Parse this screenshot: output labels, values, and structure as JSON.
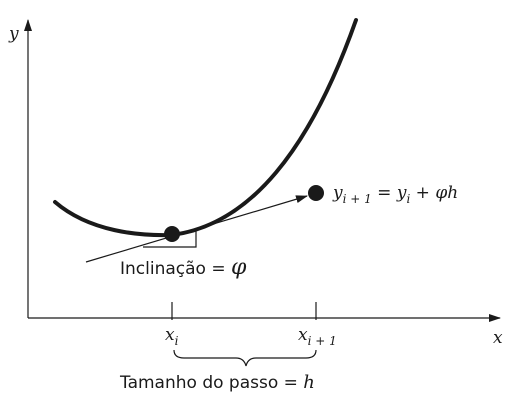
{
  "axes": {
    "y_label": "y",
    "x_label": "x"
  },
  "ticks": {
    "xi_base": "x",
    "xi_sub": "i",
    "xi1_base": "x",
    "xi1_sub": "i + 1"
  },
  "annotations": {
    "slope_text": "Inclinação = ",
    "slope_symbol": "φ",
    "step_text": "Tamanho do passo = ",
    "step_symbol": "h",
    "formula": {
      "lhs_base": "y",
      "lhs_sub": "i + 1",
      "equals": " = ",
      "rhs_base": "y",
      "rhs_sub": "i",
      "plus": " + ",
      "phi": "φ",
      "h": "h"
    }
  },
  "colors": {
    "ink": "#1a1a1a"
  }
}
